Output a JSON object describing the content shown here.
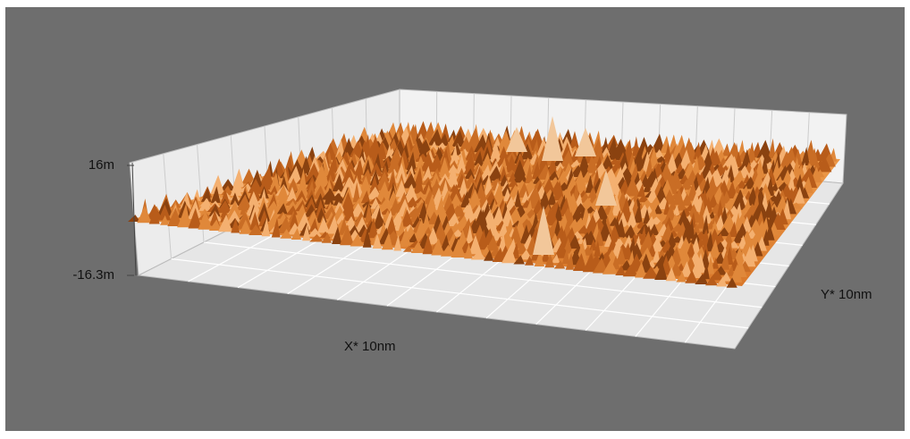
{
  "chart_data": {
    "type": "surface",
    "color": "#d9782a",
    "zlim": [
      -0.0163,
      0.016
    ],
    "zticks": [
      {
        "value": 0.016,
        "label": "16m"
      },
      {
        "value": -0.0163,
        "label": "-16.3m"
      }
    ],
    "xlabel": "X* 10nm",
    "ylabel": "Y* 10nm",
    "grid": true
  }
}
